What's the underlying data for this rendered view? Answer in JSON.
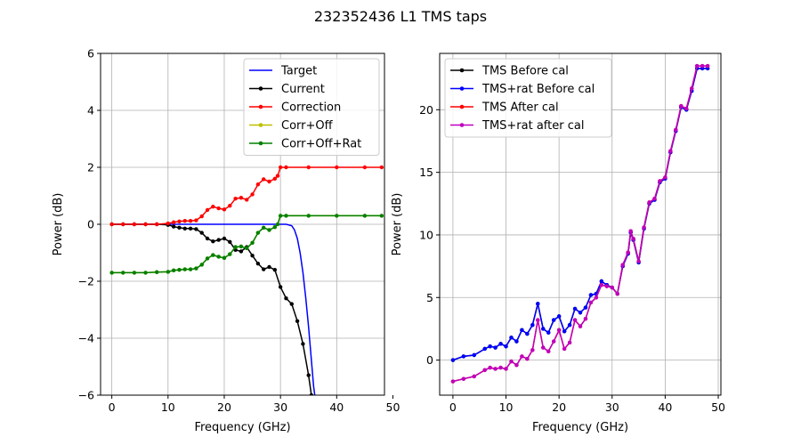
{
  "figure": {
    "title": "232352436 L1 TMS taps"
  },
  "chart_data": [
    {
      "type": "line",
      "xlabel": "Frequency (GHz)",
      "ylabel": "Power (dB)",
      "xlim": [
        -2,
        48.5
      ],
      "ylim": [
        -6,
        6
      ],
      "xticks": [
        0,
        10,
        20,
        30,
        40,
        50
      ],
      "yticks": [
        -6,
        -4,
        -2,
        0,
        2,
        4,
        6
      ],
      "grid": true,
      "legend_position": "upper right",
      "series": [
        {
          "name": "Target",
          "color": "#0000ff",
          "marker": false,
          "x": [
            0,
            5,
            10,
            15,
            20,
            25,
            28,
            30,
            31,
            32,
            32.5,
            33,
            33.5,
            34,
            34.5,
            35,
            35.3,
            35.6,
            35.9,
            36.1
          ],
          "y": [
            0,
            0,
            0,
            0,
            0,
            0,
            0,
            0,
            0,
            -0.05,
            -0.2,
            -0.5,
            -1.0,
            -1.7,
            -2.6,
            -3.6,
            -4.3,
            -5.0,
            -5.7,
            -6.0
          ]
        },
        {
          "name": "Current",
          "color": "#000000",
          "marker": true,
          "x": [
            0,
            2,
            4,
            6,
            8,
            10,
            11,
            12,
            13,
            14,
            15,
            16,
            17,
            18,
            19,
            20,
            21,
            22,
            23,
            24,
            25,
            26,
            27,
            28,
            29,
            30,
            31,
            32,
            33,
            34,
            35,
            35.5
          ],
          "y": [
            0,
            0,
            0,
            0,
            0,
            -0.02,
            -0.08,
            -0.12,
            -0.15,
            -0.15,
            -0.17,
            -0.3,
            -0.5,
            -0.6,
            -0.55,
            -0.5,
            -0.62,
            -0.9,
            -0.95,
            -0.8,
            -1.1,
            -1.38,
            -1.58,
            -1.5,
            -1.6,
            -2.2,
            -2.6,
            -2.8,
            -3.4,
            -4.2,
            -5.3,
            -6.0
          ]
        },
        {
          "name": "Correction",
          "color": "#ff0000",
          "marker": true,
          "x": [
            0,
            2,
            4,
            6,
            8,
            10,
            11,
            12,
            13,
            14,
            15,
            16,
            17,
            18,
            19,
            20,
            21,
            22,
            23,
            24,
            25,
            26,
            27,
            28,
            29,
            29.5,
            30,
            31,
            35,
            40,
            45,
            48
          ],
          "y": [
            0,
            0,
            0,
            0,
            0,
            0.03,
            0.07,
            0.1,
            0.12,
            0.12,
            0.14,
            0.28,
            0.5,
            0.62,
            0.56,
            0.52,
            0.65,
            0.9,
            0.93,
            0.86,
            1.05,
            1.4,
            1.58,
            1.5,
            1.6,
            1.7,
            2.0,
            2.0,
            2.0,
            2.0,
            2.0,
            2.0
          ]
        },
        {
          "name": "Corr+Off",
          "color": "#bfbf00",
          "marker": true,
          "x": [
            0,
            2,
            4,
            6,
            8,
            10,
            11,
            12,
            13,
            14,
            15,
            16,
            17,
            18,
            19,
            20,
            21,
            22,
            23,
            24,
            25,
            26,
            27,
            28,
            29,
            29.5,
            30,
            31,
            35,
            40,
            45,
            48
          ],
          "y": [
            -1.7,
            -1.7,
            -1.7,
            -1.7,
            -1.68,
            -1.67,
            -1.62,
            -1.6,
            -1.58,
            -1.58,
            -1.55,
            -1.42,
            -1.2,
            -1.08,
            -1.14,
            -1.18,
            -1.05,
            -0.8,
            -0.78,
            -0.84,
            -0.65,
            -0.3,
            -0.12,
            -0.2,
            -0.1,
            0.0,
            0.3,
            0.3,
            0.3,
            0.3,
            0.3,
            0.3
          ]
        },
        {
          "name": "Corr+Off+Rat",
          "color": "#008000",
          "marker": true,
          "x": [
            0,
            2,
            4,
            6,
            8,
            10,
            11,
            12,
            13,
            14,
            15,
            16,
            17,
            18,
            19,
            20,
            21,
            22,
            23,
            24,
            25,
            26,
            27,
            28,
            29,
            29.5,
            30,
            31,
            35,
            40,
            45,
            48
          ],
          "y": [
            -1.7,
            -1.7,
            -1.7,
            -1.7,
            -1.68,
            -1.67,
            -1.62,
            -1.6,
            -1.58,
            -1.58,
            -1.55,
            -1.42,
            -1.2,
            -1.08,
            -1.14,
            -1.18,
            -1.05,
            -0.8,
            -0.78,
            -0.84,
            -0.65,
            -0.3,
            -0.12,
            -0.2,
            -0.1,
            0.0,
            0.3,
            0.3,
            0.3,
            0.3,
            0.3,
            0.3
          ]
        }
      ]
    },
    {
      "type": "line",
      "xlabel": "Frequency (GHz)",
      "ylabel": "Power (dB)",
      "xlim": [
        -2.5,
        50.5
      ],
      "ylim": [
        -2.8,
        24.5
      ],
      "xticks": [
        0,
        10,
        20,
        30,
        40,
        50
      ],
      "yticks": [
        0,
        5,
        10,
        15,
        20
      ],
      "grid": true,
      "legend_position": "upper left",
      "series": [
        {
          "name": "TMS Before cal",
          "color": "#000000",
          "marker": true,
          "x": [
            0,
            2,
            4,
            6,
            7,
            8,
            9,
            10,
            11,
            12,
            13,
            14,
            15,
            16,
            17,
            18,
            19,
            20,
            21,
            22,
            23,
            24,
            25,
            26,
            27,
            28,
            29,
            30,
            31,
            32,
            33,
            33.5,
            34,
            35,
            36,
            37,
            38,
            39,
            40,
            41,
            42,
            43,
            44,
            45,
            46,
            47,
            48
          ],
          "y": [
            0,
            0.3,
            0.4,
            0.9,
            1.1,
            1.0,
            1.3,
            1.1,
            1.8,
            1.5,
            2.4,
            2.1,
            2.8,
            4.5,
            2.5,
            2.2,
            3.2,
            3.5,
            2.3,
            2.8,
            4.1,
            3.8,
            4.2,
            5.2,
            5.3,
            6.3,
            6.0,
            5.8,
            5.3,
            7.5,
            8.5,
            10.2,
            9.6,
            7.8,
            10.5,
            12.5,
            12.8,
            14.2,
            14.5,
            16.6,
            18.3,
            20.2,
            20.0,
            21.5,
            23.3,
            23.3,
            23.3
          ]
        },
        {
          "name": "TMS+rat Before cal",
          "color": "#0000ff",
          "marker": true,
          "x": [
            0,
            2,
            4,
            6,
            7,
            8,
            9,
            10,
            11,
            12,
            13,
            14,
            15,
            16,
            17,
            18,
            19,
            20,
            21,
            22,
            23,
            24,
            25,
            26,
            27,
            28,
            29,
            30,
            31,
            32,
            33,
            33.5,
            34,
            35,
            36,
            37,
            38,
            39,
            40,
            41,
            42,
            43,
            44,
            45,
            46,
            47,
            48
          ],
          "y": [
            0,
            0.3,
            0.4,
            0.9,
            1.1,
            1.0,
            1.3,
            1.1,
            1.8,
            1.5,
            2.4,
            2.1,
            2.8,
            4.5,
            2.5,
            2.2,
            3.2,
            3.5,
            2.3,
            2.8,
            4.1,
            3.8,
            4.2,
            5.2,
            5.3,
            6.3,
            6.0,
            5.8,
            5.3,
            7.5,
            8.5,
            10.2,
            9.6,
            7.8,
            10.5,
            12.5,
            12.8,
            14.2,
            14.5,
            16.6,
            18.3,
            20.2,
            20.0,
            21.5,
            23.3,
            23.3,
            23.3
          ]
        },
        {
          "name": "TMS After cal",
          "color": "#ff0000",
          "marker": true,
          "x": [
            0,
            2,
            4,
            6,
            7,
            8,
            9,
            10,
            11,
            12,
            13,
            14,
            15,
            16,
            17,
            18,
            19,
            20,
            21,
            22,
            23,
            24,
            25,
            26,
            27,
            28,
            29,
            30,
            31,
            32,
            33,
            33.5,
            34,
            35,
            36,
            37,
            38,
            39,
            40,
            41,
            42,
            43,
            44,
            45,
            46,
            47,
            48
          ],
          "y": [
            -1.7,
            -1.5,
            -1.3,
            -0.8,
            -0.6,
            -0.7,
            -0.6,
            -0.7,
            -0.1,
            -0.4,
            0.3,
            0.1,
            0.8,
            3.2,
            1.0,
            0.7,
            1.5,
            2.4,
            0.9,
            1.4,
            3.2,
            2.7,
            3.3,
            4.6,
            5.0,
            6.0,
            5.9,
            5.8,
            5.3,
            7.6,
            8.6,
            10.3,
            9.7,
            7.9,
            10.6,
            12.6,
            12.9,
            14.3,
            14.6,
            16.7,
            18.4,
            20.3,
            20.1,
            21.7,
            23.5,
            23.5,
            23.5
          ]
        },
        {
          "name": "TMS+rat after cal",
          "color": "#bf00bf",
          "marker": true,
          "x": [
            0,
            2,
            4,
            6,
            7,
            8,
            9,
            10,
            11,
            12,
            13,
            14,
            15,
            16,
            17,
            18,
            19,
            20,
            21,
            22,
            23,
            24,
            25,
            26,
            27,
            28,
            29,
            30,
            31,
            32,
            33,
            33.5,
            34,
            35,
            36,
            37,
            38,
            39,
            40,
            41,
            42,
            43,
            44,
            45,
            46,
            47,
            48
          ],
          "y": [
            -1.7,
            -1.5,
            -1.3,
            -0.8,
            -0.6,
            -0.7,
            -0.6,
            -0.7,
            -0.1,
            -0.4,
            0.3,
            0.1,
            0.8,
            3.2,
            1.0,
            0.7,
            1.5,
            2.4,
            0.9,
            1.4,
            3.2,
            2.7,
            3.3,
            4.6,
            5.0,
            6.0,
            5.9,
            5.8,
            5.3,
            7.6,
            8.6,
            10.3,
            9.7,
            7.9,
            10.6,
            12.6,
            12.9,
            14.3,
            14.6,
            16.7,
            18.4,
            20.3,
            20.1,
            21.7,
            23.5,
            23.5,
            23.5
          ]
        }
      ]
    }
  ]
}
